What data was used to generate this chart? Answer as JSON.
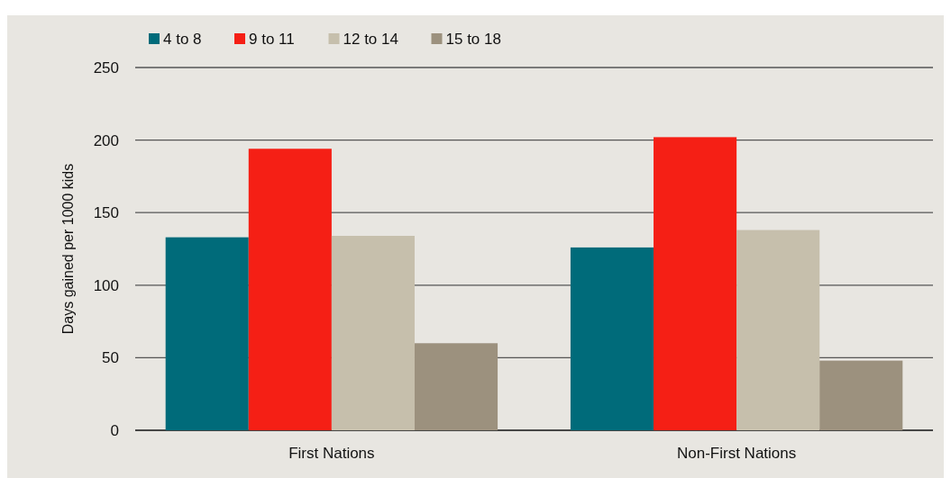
{
  "chart_data": {
    "type": "bar",
    "ylabel": "Days gained per 1000 kids",
    "categories": [
      "First Nations",
      "Non-First Nations"
    ],
    "series": [
      {
        "name": "4 to 8",
        "color": "#006b7a",
        "values": [
          133,
          126
        ]
      },
      {
        "name": "9 to 11",
        "color": "#f51f15",
        "values": [
          194,
          202
        ]
      },
      {
        "name": "12 to 14",
        "color": "#c6bfac",
        "values": [
          134,
          138
        ]
      },
      {
        "name": "15 to 18",
        "color": "#9c917e",
        "values": [
          60,
          48
        ]
      }
    ],
    "ylim": [
      0,
      250
    ],
    "yticks": [
      0,
      50,
      100,
      150,
      200,
      250
    ],
    "grid": "y",
    "legend": "top left"
  }
}
